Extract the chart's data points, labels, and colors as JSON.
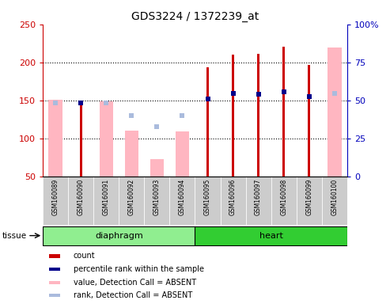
{
  "title": "GDS3224 / 1372239_at",
  "samples": [
    "GSM160089",
    "GSM160090",
    "GSM160091",
    "GSM160092",
    "GSM160093",
    "GSM160094",
    "GSM160095",
    "GSM160096",
    "GSM160097",
    "GSM160098",
    "GSM160099",
    "GSM160100"
  ],
  "group_labels": [
    "diaphragm",
    "heart"
  ],
  "group_colors": [
    "#90EE90",
    "#32CD32"
  ],
  "group_sizes": [
    6,
    6
  ],
  "count_values": [
    null,
    145,
    null,
    null,
    null,
    null,
    193,
    210,
    211,
    221,
    197,
    null
  ],
  "percentile_rank_values": [
    null,
    147,
    null,
    null,
    null,
    null,
    152,
    159,
    158,
    161,
    155,
    null
  ],
  "absent_value_values": [
    151,
    null,
    149,
    110,
    73,
    109,
    null,
    null,
    null,
    null,
    null,
    220
  ],
  "absent_rank_values": [
    147,
    null,
    147,
    130,
    115,
    130,
    null,
    null,
    null,
    null,
    null,
    159
  ],
  "ylim_left": [
    50,
    250
  ],
  "ylim_right": [
    0,
    100
  ],
  "yticks_left": [
    50,
    100,
    150,
    200,
    250
  ],
  "yticks_right": [
    0,
    25,
    50,
    75,
    100
  ],
  "ytick_right_labels": [
    "0",
    "25",
    "50",
    "75",
    "100%"
  ],
  "left_color": "#CC0000",
  "right_color": "#0000BB",
  "count_color": "#CC0000",
  "percentile_color": "#00008B",
  "absent_value_color": "#FFB6C1",
  "absent_rank_color": "#AABBDD",
  "absent_bar_width": 0.55,
  "count_bar_width": 0.1,
  "grid_yticks": [
    100,
    150,
    200
  ],
  "tissue_label": "tissue",
  "legend_items": [
    {
      "label": "count",
      "color": "#CC0000"
    },
    {
      "label": "percentile rank within the sample",
      "color": "#00008B"
    },
    {
      "label": "value, Detection Call = ABSENT",
      "color": "#FFB6C1"
    },
    {
      "label": "rank, Detection Call = ABSENT",
      "color": "#AABBDD"
    }
  ],
  "sample_box_color": "#CCCCCC",
  "figure_width": 4.93,
  "figure_height": 3.84,
  "dpi": 100
}
